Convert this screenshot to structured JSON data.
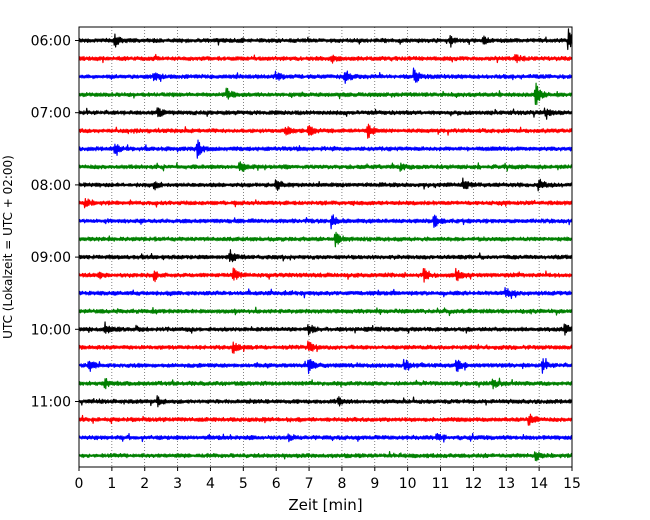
{
  "chart_data": {
    "type": "line",
    "subtype": "helicorder",
    "title": "",
    "xlabel": "Zeit  [min]",
    "ylabel": "UTC (Lokalzeit = UTC + 02:00)",
    "xlim": [
      0,
      15
    ],
    "x_ticks": [
      "0",
      "1",
      "2",
      "3",
      "4",
      "5",
      "6",
      "7",
      "8",
      "9",
      "10",
      "11",
      "12",
      "13",
      "14",
      "15"
    ],
    "x_gridlines": "dotted vertical at every minute",
    "trace_interval_min": 15,
    "start_time_utc": "06:00",
    "trace_count": 24,
    "trace_colors": [
      "#000000",
      "#ff0000",
      "#0000ff",
      "#008000"
    ],
    "y_ticks": [
      {
        "label": "06:00",
        "trace_index": 0
      },
      {
        "label": "07:00",
        "trace_index": 4
      },
      {
        "label": "08:00",
        "trace_index": 8
      },
      {
        "label": "09:00",
        "trace_index": 12
      },
      {
        "label": "10:00",
        "trace_index": 16
      },
      {
        "label": "11:00",
        "trace_index": 20
      }
    ],
    "series": [
      {
        "trace": "06:00",
        "events": [
          [
            1.1,
            0.45
          ],
          [
            14.9,
            0.95
          ],
          [
            11.3,
            0.3
          ],
          [
            12.3,
            0.3
          ]
        ]
      },
      {
        "trace": "06:15",
        "events": [
          [
            7.7,
            0.3
          ],
          [
            13.3,
            0.3
          ]
        ]
      },
      {
        "trace": "06:30",
        "events": [
          [
            8.1,
            0.6
          ],
          [
            10.2,
            0.75
          ],
          [
            6,
            0.4
          ],
          [
            2.3,
            0.3
          ]
        ]
      },
      {
        "trace": "06:45",
        "events": [
          [
            4.5,
            0.45
          ],
          [
            13.9,
            0.95
          ]
        ]
      },
      {
        "trace": "07:00",
        "events": [
          [
            2.4,
            0.35
          ],
          [
            14.2,
            0.35
          ]
        ]
      },
      {
        "trace": "07:15",
        "events": [
          [
            7,
            0.55
          ],
          [
            6.3,
            0.35
          ],
          [
            8.8,
            0.55
          ]
        ]
      },
      {
        "trace": "07:30",
        "events": [
          [
            3.6,
            0.75
          ],
          [
            1.1,
            0.4
          ]
        ]
      },
      {
        "trace": "07:45",
        "events": [
          [
            4.9,
            0.35
          ],
          [
            9.8,
            0.3
          ]
        ]
      },
      {
        "trace": "08:00",
        "events": [
          [
            6,
            0.55
          ],
          [
            11.7,
            0.45
          ],
          [
            14,
            0.5
          ],
          [
            2.3,
            0.3
          ]
        ]
      },
      {
        "trace": "08:15",
        "events": [
          [
            0.2,
            0.4
          ]
        ]
      },
      {
        "trace": "08:30",
        "events": [
          [
            7.7,
            0.6
          ],
          [
            10.8,
            0.7
          ]
        ]
      },
      {
        "trace": "08:45",
        "events": [
          [
            7.8,
            0.6
          ]
        ]
      },
      {
        "trace": "09:00",
        "events": [
          [
            4.6,
            0.55
          ]
        ]
      },
      {
        "trace": "09:15",
        "events": [
          [
            4.7,
            0.55
          ],
          [
            10.5,
            0.55
          ],
          [
            11.5,
            0.5
          ],
          [
            0.6,
            0.35
          ],
          [
            2.3,
            0.3
          ]
        ]
      },
      {
        "trace": "09:30",
        "events": [
          [
            13,
            0.45
          ]
        ]
      },
      {
        "trace": "09:45",
        "events": []
      },
      {
        "trace": "10:00",
        "events": [
          [
            0.8,
            0.55
          ],
          [
            7,
            0.45
          ],
          [
            14.8,
            0.4
          ]
        ]
      },
      {
        "trace": "10:15",
        "events": [
          [
            4.7,
            0.45
          ],
          [
            7,
            0.45
          ]
        ]
      },
      {
        "trace": "10:30",
        "events": [
          [
            0.3,
            0.55
          ],
          [
            7,
            0.55
          ],
          [
            9.9,
            0.55
          ],
          [
            11.5,
            0.55
          ],
          [
            14.1,
            0.55
          ]
        ]
      },
      {
        "trace": "10:45",
        "events": [
          [
            0.8,
            0.4
          ],
          [
            12.6,
            0.35
          ]
        ]
      },
      {
        "trace": "11:00",
        "events": [
          [
            2.4,
            0.35
          ],
          [
            7.9,
            0.3
          ]
        ]
      },
      {
        "trace": "11:15",
        "events": [
          [
            13.7,
            0.55
          ]
        ]
      },
      {
        "trace": "11:30",
        "events": [
          [
            6.4,
            0.25
          ],
          [
            10.9,
            0.25
          ]
        ]
      },
      {
        "trace": "11:45",
        "events": [
          [
            13.9,
            0.4
          ]
        ]
      }
    ]
  }
}
